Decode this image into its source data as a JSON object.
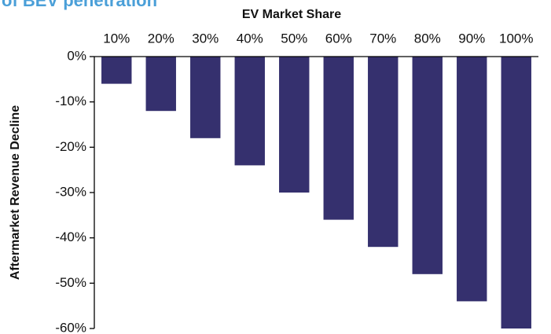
{
  "chart_data": {
    "type": "bar",
    "title": "of BEV penetration",
    "x_label": "EV Market Share",
    "y_label": "Aftermarket Revenue Decline",
    "categories": [
      "10%",
      "20%",
      "30%",
      "40%",
      "50%",
      "60%",
      "70%",
      "80%",
      "90%",
      "100%"
    ],
    "values": [
      -6,
      -12,
      -18,
      -24,
      -30,
      -36,
      -42,
      -48,
      -54,
      -60
    ],
    "color": "#35306e",
    "ylim": [
      -60,
      0
    ],
    "yticks": [
      {
        "value": 0,
        "label": "0%"
      },
      {
        "value": -10,
        "label": "-10%"
      },
      {
        "value": -20,
        "label": "-20%"
      },
      {
        "value": -30,
        "label": "-30%"
      },
      {
        "value": -40,
        "label": "-40%"
      },
      {
        "value": -50,
        "label": "-50%"
      },
      {
        "value": -60,
        "label": "-60%"
      }
    ],
    "grid": false
  }
}
